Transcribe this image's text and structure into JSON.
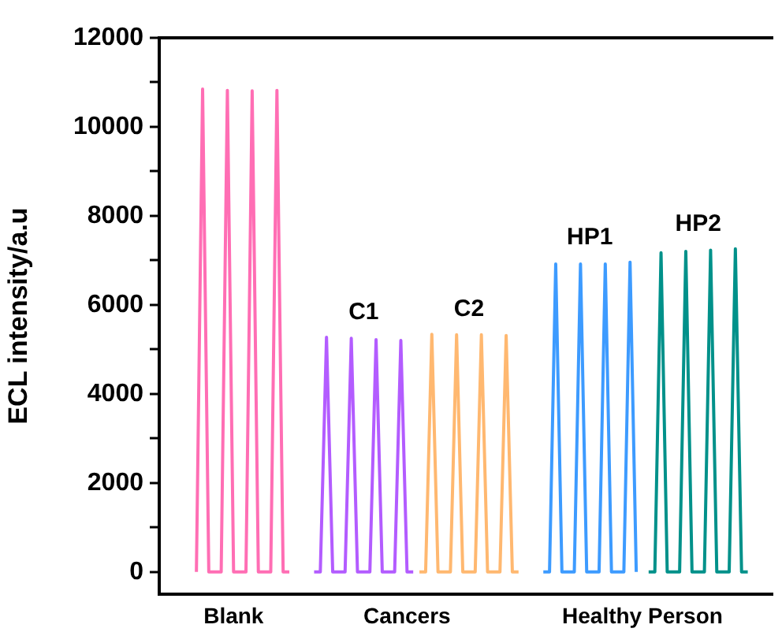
{
  "chart_data": {
    "type": "line",
    "ylabel": "ECL intensity/a.u",
    "categories": [
      null,
      null,
      null,
      null,
      null,
      null,
      null,
      null,
      null,
      null,
      null,
      null,
      "Blank",
      null,
      null,
      null,
      null,
      null,
      null,
      null,
      null,
      null,
      null,
      null,
      null,
      null,
      null,
      null,
      null,
      null,
      null,
      null,
      null,
      null,
      null,
      null,
      null,
      null,
      null,
      null,
      "Cancers",
      null,
      null,
      null,
      null,
      null,
      null,
      null,
      null,
      null,
      null,
      null,
      null,
      null,
      null,
      null,
      null,
      null,
      null,
      null,
      null,
      null,
      null,
      null,
      null,
      null,
      null,
      null,
      null,
      null,
      null,
      null,
      null,
      null,
      null,
      null,
      null,
      null,
      "Healthy Person",
      null,
      null,
      null,
      null,
      null,
      null,
      null,
      null,
      null,
      null,
      null,
      null,
      null,
      null,
      null,
      null,
      null,
      null,
      null,
      null,
      null
    ],
    "ylim": [
      -500,
      12000
    ],
    "yticks": [
      0,
      {
        "value": 1000,
        "label": null
      },
      2000,
      {
        "value": 3000,
        "label": null
      },
      4000,
      {
        "value": 5000,
        "label": null
      },
      6000,
      {
        "value": 7000,
        "label": null
      },
      8000,
      {
        "value": 9000,
        "label": null
      },
      10000,
      {
        "value": 11000,
        "label": null
      },
      12000
    ],
    "grid": false,
    "marker": "none",
    "line_style": "solid",
    "series": [
      {
        "color": "#ff6eb4",
        "values": [
          null,
          null,
          null,
          null,
          null,
          null,
          0,
          10850,
          0,
          0,
          0,
          10820,
          0,
          0,
          0,
          10810,
          0,
          0,
          0,
          10820,
          0,
          0,
          null,
          null,
          null,
          null,
          null,
          null,
          null,
          null,
          null,
          null,
          null,
          null,
          null,
          null,
          null,
          null,
          null,
          null,
          null,
          null,
          null,
          null,
          null,
          null,
          null,
          null,
          null,
          null,
          null,
          null,
          null,
          null,
          null,
          null,
          null,
          null,
          null,
          null,
          null,
          null,
          null,
          null,
          null,
          null,
          null,
          null,
          null,
          null,
          null,
          null,
          null,
          null,
          null,
          null,
          null,
          null,
          null,
          null,
          null,
          null,
          null,
          null,
          null,
          null,
          null,
          null,
          null,
          null,
          null,
          null,
          null,
          null,
          null,
          null,
          null,
          null,
          null,
          null
        ]
      },
      {
        "name": "C1",
        "color": "#b35cff",
        "values": [
          null,
          null,
          null,
          null,
          null,
          null,
          null,
          null,
          null,
          null,
          null,
          null,
          null,
          null,
          null,
          null,
          null,
          null,
          null,
          null,
          null,
          null,
          null,
          null,
          null,
          0,
          0,
          5270,
          0,
          0,
          0,
          5250,
          0,
          0,
          0,
          5220,
          0,
          0,
          0,
          5200,
          0,
          0,
          null,
          null,
          null,
          null,
          null,
          null,
          null,
          null,
          null,
          null,
          null,
          null,
          null,
          null,
          null,
          null,
          null,
          null,
          null,
          null,
          null,
          null,
          null,
          null,
          null,
          null,
          null,
          null,
          null,
          null,
          null,
          null,
          null,
          null,
          null,
          null,
          null,
          null,
          null,
          null,
          null,
          null,
          null,
          null,
          null,
          null,
          null,
          null,
          null,
          null,
          null,
          null,
          null,
          null,
          null,
          null,
          null,
          null
        ]
      },
      {
        "name": "C2",
        "color": "#ffb870",
        "values": [
          null,
          null,
          null,
          null,
          null,
          null,
          null,
          null,
          null,
          null,
          null,
          null,
          null,
          null,
          null,
          null,
          null,
          null,
          null,
          null,
          null,
          null,
          null,
          null,
          null,
          null,
          null,
          null,
          null,
          null,
          null,
          null,
          null,
          null,
          null,
          null,
          null,
          null,
          null,
          null,
          null,
          null,
          0,
          0,
          5340,
          0,
          0,
          0,
          5330,
          0,
          0,
          0,
          5330,
          0,
          0,
          0,
          5310,
          0,
          0,
          null,
          null,
          null,
          null,
          null,
          null,
          null,
          null,
          null,
          null,
          null,
          null,
          null,
          null,
          null,
          null,
          null,
          null,
          null,
          null,
          null,
          null,
          null,
          null,
          null,
          null,
          null,
          null,
          null,
          null,
          null,
          null,
          null,
          null,
          null,
          null,
          null,
          null,
          null,
          null,
          null
        ]
      },
      {
        "name": "HP1",
        "color": "#3d9bff",
        "values": [
          null,
          null,
          null,
          null,
          null,
          null,
          null,
          null,
          null,
          null,
          null,
          null,
          null,
          null,
          null,
          null,
          null,
          null,
          null,
          null,
          null,
          null,
          null,
          null,
          null,
          null,
          null,
          null,
          null,
          null,
          null,
          null,
          null,
          null,
          null,
          null,
          null,
          null,
          null,
          null,
          null,
          null,
          null,
          null,
          null,
          null,
          null,
          null,
          null,
          null,
          null,
          null,
          null,
          null,
          null,
          null,
          null,
          null,
          null,
          null,
          null,
          null,
          0,
          0,
          6920,
          0,
          0,
          0,
          6920,
          0,
          0,
          0,
          6920,
          0,
          0,
          0,
          6960,
          0,
          null,
          null,
          null,
          null,
          null,
          null,
          null,
          null,
          null,
          null,
          null,
          null,
          null,
          null,
          null,
          null,
          null,
          null,
          null,
          null,
          null,
          null
        ]
      },
      {
        "name": "HP2",
        "color": "#00918a",
        "values": [
          null,
          null,
          null,
          null,
          null,
          null,
          null,
          null,
          null,
          null,
          null,
          null,
          null,
          null,
          null,
          null,
          null,
          null,
          null,
          null,
          null,
          null,
          null,
          null,
          null,
          null,
          null,
          null,
          null,
          null,
          null,
          null,
          null,
          null,
          null,
          null,
          null,
          null,
          null,
          null,
          null,
          null,
          null,
          null,
          null,
          null,
          null,
          null,
          null,
          null,
          null,
          null,
          null,
          null,
          null,
          null,
          null,
          null,
          null,
          null,
          null,
          null,
          null,
          null,
          null,
          null,
          null,
          null,
          null,
          null,
          null,
          null,
          null,
          null,
          null,
          null,
          null,
          null,
          null,
          0,
          0,
          7170,
          0,
          0,
          0,
          7200,
          0,
          0,
          0,
          7230,
          0,
          0,
          0,
          7260,
          0,
          0,
          null,
          null,
          null,
          null
        ]
      }
    ]
  }
}
